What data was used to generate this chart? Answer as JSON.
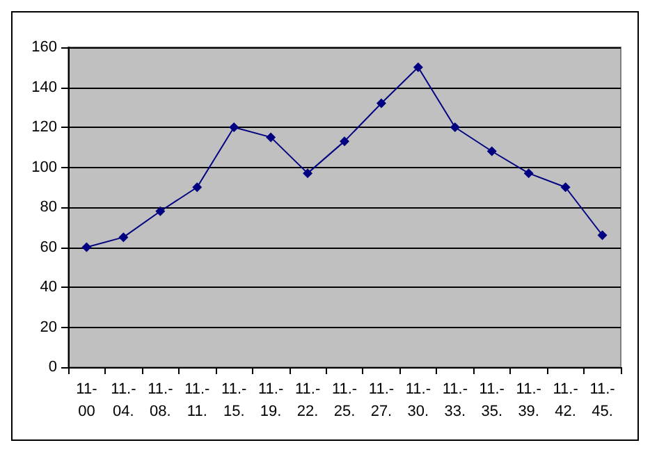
{
  "chart_data": {
    "type": "line",
    "categories": [
      "11-00",
      "11.-04.",
      "11.-08.",
      "11.-11.",
      "11.-15.",
      "11.-19.",
      "11.-22.",
      "11.-25.",
      "11.-27.",
      "11.-30.",
      "11.-33.",
      "11.-35.",
      "11.-39.",
      "11.-42.",
      "11.-45."
    ],
    "series": [
      {
        "color": "#000080",
        "values": [
          60,
          65,
          78,
          90,
          120,
          115,
          97,
          113,
          132,
          150,
          120,
          108,
          97,
          90,
          66
        ]
      }
    ],
    "ylim": [
      0,
      160
    ],
    "yticks": [
      0,
      20,
      40,
      60,
      80,
      100,
      120,
      140,
      160
    ],
    "grid": "y",
    "marker": "diamond"
  }
}
